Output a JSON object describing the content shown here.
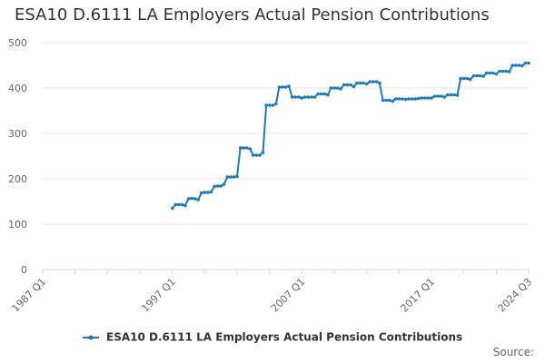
{
  "colors": {
    "series": "#1f7bb6",
    "grid": "#e6e6e6",
    "axis": "#ccd6eb"
  },
  "footer": {
    "source_label": "Source:"
  },
  "chart_data": {
    "type": "line",
    "title": "ESA10 D.6111 LA Employers Actual Pension Contributions",
    "xlabel": "",
    "ylabel": "",
    "ylim": [
      0,
      500
    ],
    "yticks": [
      0,
      100,
      200,
      300,
      400,
      500
    ],
    "x_tick_labels": [
      "1987 Q1",
      "1997 Q1",
      "2007 Q1",
      "2017 Q1",
      "2024 Q3"
    ],
    "x_tick_years": [
      1987,
      1997,
      2007,
      2017,
      2024.5
    ],
    "legend": "bottom-center",
    "grid": true,
    "series": [
      {
        "name": "ESA10 D.6111 LA Employers Actual Pension Contributions",
        "x": [
          "1997 Q1",
          "1997 Q2",
          "1997 Q3",
          "1997 Q4",
          "1998 Q1",
          "1998 Q2",
          "1998 Q3",
          "1998 Q4",
          "1999 Q1",
          "1999 Q2",
          "1999 Q3",
          "1999 Q4",
          "2000 Q1",
          "2000 Q2",
          "2000 Q3",
          "2000 Q4",
          "2001 Q1",
          "2001 Q2",
          "2001 Q3",
          "2001 Q4",
          "2002 Q1",
          "2002 Q2",
          "2002 Q3",
          "2002 Q4",
          "2003 Q1",
          "2003 Q2",
          "2003 Q3",
          "2003 Q4",
          "2004 Q1",
          "2004 Q2",
          "2004 Q3",
          "2004 Q4",
          "2005 Q1",
          "2005 Q2",
          "2005 Q3",
          "2005 Q4",
          "2006 Q1",
          "2006 Q2",
          "2006 Q3",
          "2006 Q4",
          "2007 Q1",
          "2007 Q2",
          "2007 Q3",
          "2007 Q4",
          "2008 Q1",
          "2008 Q2",
          "2008 Q3",
          "2008 Q4",
          "2009 Q1",
          "2009 Q2",
          "2009 Q3",
          "2009 Q4",
          "2010 Q1",
          "2010 Q2",
          "2010 Q3",
          "2010 Q4",
          "2011 Q1",
          "2011 Q2",
          "2011 Q3",
          "2011 Q4",
          "2012 Q1",
          "2012 Q2",
          "2012 Q3",
          "2012 Q4",
          "2013 Q1",
          "2013 Q2",
          "2013 Q3",
          "2013 Q4",
          "2014 Q1",
          "2014 Q2",
          "2014 Q3",
          "2014 Q4",
          "2015 Q1",
          "2015 Q2",
          "2015 Q3",
          "2015 Q4",
          "2016 Q1",
          "2016 Q2",
          "2016 Q3",
          "2016 Q4",
          "2017 Q1",
          "2017 Q2",
          "2017 Q3",
          "2017 Q4",
          "2018 Q1",
          "2018 Q2",
          "2018 Q3",
          "2018 Q4",
          "2019 Q1",
          "2019 Q2",
          "2019 Q3",
          "2019 Q4",
          "2020 Q1",
          "2020 Q2",
          "2020 Q3",
          "2020 Q4",
          "2021 Q1",
          "2021 Q2",
          "2021 Q3",
          "2021 Q4",
          "2022 Q1",
          "2022 Q2",
          "2022 Q3",
          "2022 Q4",
          "2023 Q1",
          "2023 Q2",
          "2023 Q3",
          "2023 Q4",
          "2024 Q1",
          "2024 Q2",
          "2024 Q3"
        ],
        "values": [
          135,
          143,
          143,
          143,
          141,
          156,
          157,
          156,
          154,
          169,
          170,
          170,
          171,
          183,
          184,
          184,
          188,
          204,
          204,
          204,
          205,
          268,
          268,
          268,
          266,
          252,
          252,
          252,
          258,
          362,
          362,
          362,
          365,
          402,
          402,
          402,
          404,
          380,
          380,
          380,
          378,
          380,
          380,
          380,
          380,
          387,
          387,
          387,
          385,
          400,
          400,
          400,
          398,
          407,
          407,
          407,
          403,
          411,
          411,
          411,
          409,
          414,
          414,
          414,
          411,
          373,
          373,
          373,
          371,
          376,
          376,
          376,
          375,
          376,
          376,
          376,
          377,
          378,
          378,
          378,
          378,
          382,
          382,
          382,
          380,
          385,
          385,
          385,
          384,
          421,
          421,
          421,
          419,
          427,
          427,
          427,
          426,
          433,
          433,
          433,
          431,
          437,
          437,
          437,
          436,
          450,
          450,
          450,
          449,
          455,
          455
        ]
      }
    ]
  }
}
